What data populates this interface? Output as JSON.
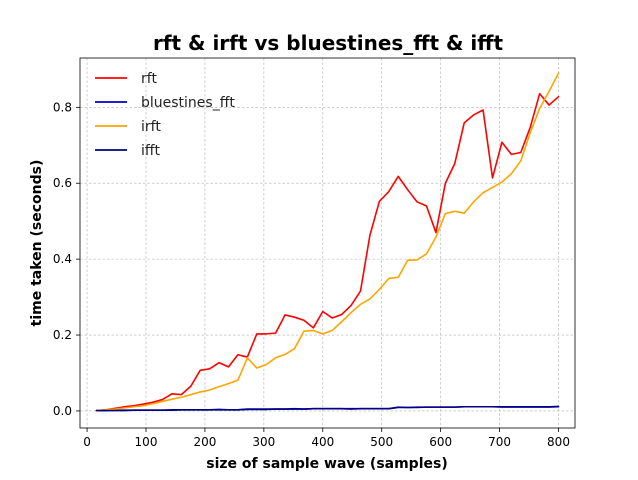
{
  "chart_data": {
    "type": "line",
    "title": "rft & irft vs bluestines_fft & ifft",
    "xlabel": "size of sample wave (samples)",
    "ylabel": "time taken (seconds)",
    "xlim": [
      -12,
      828
    ],
    "ylim": [
      -0.045,
      0.93
    ],
    "xticks": [
      0,
      100,
      200,
      300,
      400,
      500,
      600,
      700,
      800
    ],
    "yticks": [
      0.0,
      0.2,
      0.4,
      0.6,
      0.8
    ],
    "ytick_labels": [
      "0.0",
      "0.2",
      "0.4",
      "0.6",
      "0.8"
    ],
    "grid": true,
    "legend_position": "top-left",
    "series": [
      {
        "name": "rft",
        "color": "#ff0000",
        "x": [
          16,
          32,
          48,
          64,
          80,
          96,
          112,
          128,
          144,
          160,
          176,
          192,
          208,
          224,
          240,
          256,
          272,
          288,
          304,
          320,
          336,
          352,
          368,
          384,
          400,
          416,
          432,
          448,
          464,
          480,
          496,
          512,
          528,
          544,
          560,
          576,
          592,
          608,
          624,
          640,
          656,
          672,
          688,
          704,
          720,
          736,
          752,
          768,
          784,
          800
        ],
        "y": [
          0.001,
          0.003,
          0.007,
          0.011,
          0.014,
          0.018,
          0.023,
          0.03,
          0.045,
          0.043,
          0.065,
          0.107,
          0.111,
          0.127,
          0.116,
          0.148,
          0.142,
          0.203,
          0.203,
          0.205,
          0.253,
          0.247,
          0.239,
          0.219,
          0.262,
          0.245,
          0.254,
          0.278,
          0.316,
          0.463,
          0.552,
          0.578,
          0.618,
          0.583,
          0.551,
          0.54,
          0.47,
          0.6,
          0.652,
          0.759,
          0.78,
          0.793,
          0.614,
          0.708,
          0.676,
          0.681,
          0.747,
          0.836,
          0.806,
          0.828
        ]
      },
      {
        "name": "bluestines_fft",
        "color": "#0000cc",
        "x": [
          16,
          32,
          48,
          64,
          80,
          96,
          112,
          128,
          144,
          160,
          176,
          192,
          208,
          224,
          240,
          256,
          272,
          288,
          304,
          320,
          336,
          352,
          368,
          384,
          400,
          416,
          432,
          448,
          464,
          480,
          496,
          512,
          528,
          544,
          560,
          576,
          592,
          608,
          624,
          640,
          656,
          672,
          688,
          704,
          720,
          736,
          752,
          768,
          784,
          800
        ],
        "y": [
          0.001,
          0.001,
          0.002,
          0.002,
          0.002,
          0.002,
          0.002,
          0.002,
          0.003,
          0.003,
          0.003,
          0.003,
          0.003,
          0.004,
          0.003,
          0.003,
          0.005,
          0.005,
          0.005,
          0.005,
          0.005,
          0.006,
          0.005,
          0.006,
          0.006,
          0.006,
          0.006,
          0.005,
          0.006,
          0.006,
          0.006,
          0.006,
          0.01,
          0.009,
          0.01,
          0.01,
          0.01,
          0.01,
          0.01,
          0.011,
          0.011,
          0.011,
          0.011,
          0.01,
          0.01,
          0.01,
          0.01,
          0.01,
          0.01,
          0.011
        ]
      },
      {
        "name": "irft",
        "color": "#ffa500",
        "x": [
          16,
          32,
          48,
          64,
          80,
          96,
          112,
          128,
          144,
          160,
          176,
          192,
          208,
          224,
          240,
          256,
          272,
          288,
          304,
          320,
          336,
          352,
          368,
          384,
          400,
          416,
          432,
          448,
          464,
          480,
          496,
          512,
          528,
          544,
          560,
          576,
          592,
          608,
          624,
          640,
          656,
          672,
          688,
          704,
          720,
          736,
          752,
          768,
          784,
          800
        ],
        "y": [
          0.001,
          0.003,
          0.005,
          0.008,
          0.011,
          0.014,
          0.019,
          0.025,
          0.031,
          0.036,
          0.043,
          0.05,
          0.055,
          0.064,
          0.072,
          0.081,
          0.14,
          0.113,
          0.122,
          0.14,
          0.149,
          0.164,
          0.21,
          0.212,
          0.203,
          0.212,
          0.235,
          0.259,
          0.281,
          0.295,
          0.32,
          0.349,
          0.352,
          0.397,
          0.398,
          0.414,
          0.458,
          0.52,
          0.526,
          0.521,
          0.551,
          0.575,
          0.589,
          0.603,
          0.625,
          0.659,
          0.733,
          0.797,
          0.842,
          0.89
        ]
      },
      {
        "name": "ifft",
        "color": "#000080",
        "x": [
          16,
          32,
          48,
          64,
          80,
          96,
          112,
          128,
          144,
          160,
          176,
          192,
          208,
          224,
          240,
          256,
          272,
          288,
          304,
          320,
          336,
          352,
          368,
          384,
          400,
          416,
          432,
          448,
          464,
          480,
          496,
          512,
          528,
          544,
          560,
          576,
          592,
          608,
          624,
          640,
          656,
          672,
          688,
          704,
          720,
          736,
          752,
          768,
          784,
          800
        ],
        "y": [
          0.001,
          0.001,
          0.001,
          0.001,
          0.002,
          0.002,
          0.002,
          0.002,
          0.002,
          0.003,
          0.003,
          0.003,
          0.003,
          0.003,
          0.003,
          0.003,
          0.004,
          0.004,
          0.004,
          0.005,
          0.005,
          0.005,
          0.005,
          0.006,
          0.006,
          0.006,
          0.006,
          0.006,
          0.006,
          0.006,
          0.006,
          0.006,
          0.009,
          0.009,
          0.009,
          0.01,
          0.01,
          0.01,
          0.01,
          0.011,
          0.011,
          0.011,
          0.011,
          0.011,
          0.011,
          0.011,
          0.011,
          0.011,
          0.011,
          0.012
        ]
      }
    ]
  }
}
